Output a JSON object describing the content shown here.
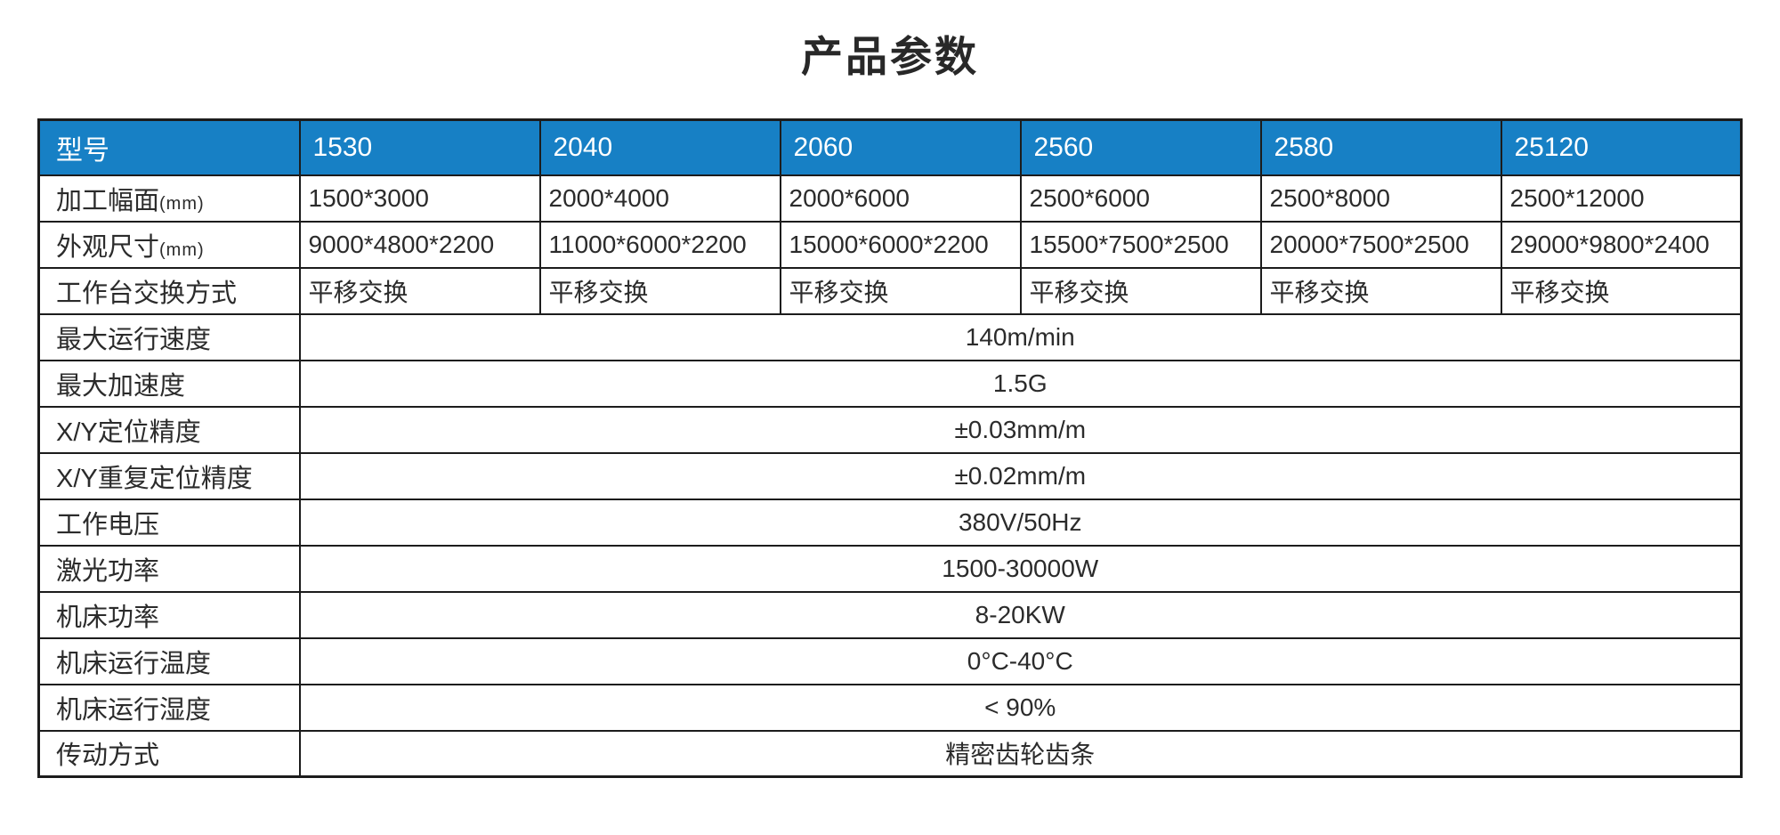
{
  "title": "产品参数",
  "colors": {
    "header-bg": "#1780C5",
    "header-text": "#FFFFFF",
    "border": "#1C1C1C",
    "body-text": "#2B2B2B"
  },
  "table": {
    "header": [
      "型号",
      "1530",
      "2040",
      "2060",
      "2560",
      "2580",
      "25120"
    ],
    "rows": [
      {
        "label": "加工幅面",
        "suffix": "(mm)",
        "values": [
          "1500*3000",
          "2000*4000",
          "2000*6000",
          "2500*6000",
          "2500*8000",
          "2500*12000"
        ]
      },
      {
        "label": "外观尺寸",
        "suffix": "(mm)",
        "values": [
          "9000*4800*2200",
          "11000*6000*2200",
          "15000*6000*2200",
          "15500*7500*2500",
          "20000*7500*2500",
          "29000*9800*2400"
        ]
      },
      {
        "label": "工作台交换方式",
        "values": [
          "平移交换",
          "平移交换",
          "平移交换",
          "平移交换",
          "平移交换",
          "平移交换"
        ]
      },
      {
        "label": "最大运行速度",
        "value": "140m/min"
      },
      {
        "label": "最大加速度",
        "value": "1.5G"
      },
      {
        "label": "X/Y定位精度",
        "value": "±0.03mm/m"
      },
      {
        "label": "X/Y重复定位精度",
        "value": "±0.02mm/m"
      },
      {
        "label": "工作电压",
        "value": "380V/50Hz"
      },
      {
        "label": "激光功率",
        "value": "1500-30000W"
      },
      {
        "label": "机床功率",
        "value": "8-20KW"
      },
      {
        "label": "机床运行温度",
        "value": "0°C-40°C"
      },
      {
        "label": "机床运行湿度",
        "value": "< 90%"
      },
      {
        "label": "传动方式",
        "value": "精密齿轮齿条"
      }
    ]
  }
}
